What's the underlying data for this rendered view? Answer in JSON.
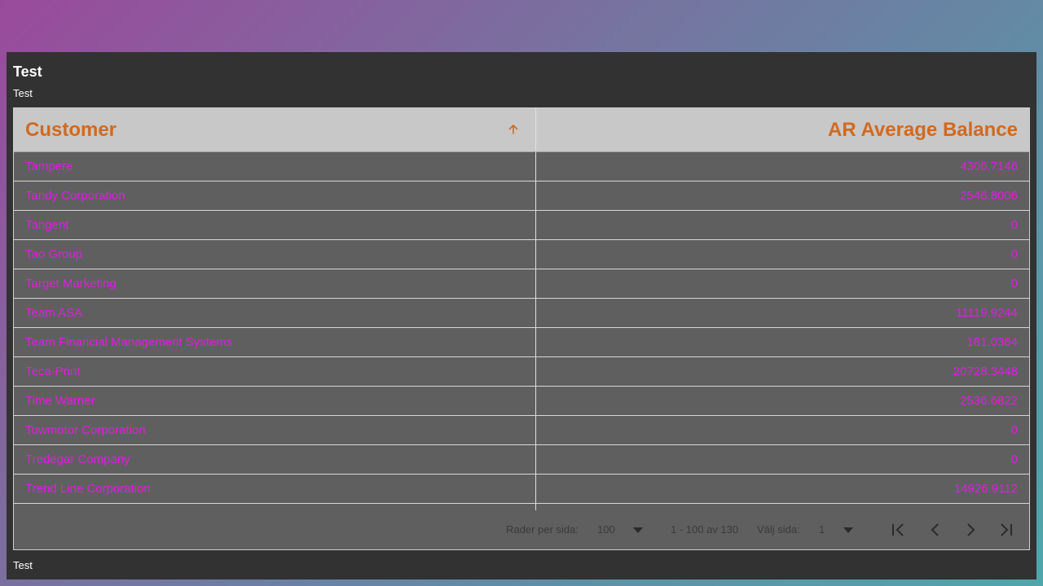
{
  "panel": {
    "title": "Test",
    "subtitle": "Test",
    "footer": "Test"
  },
  "table": {
    "columns": {
      "customer": "Customer",
      "balance": "AR Average Balance"
    },
    "sort": "ascending",
    "rows": [
      {
        "customer": "Tampere",
        "balance": "4306.7146"
      },
      {
        "customer": "Tandy Corporation",
        "balance": "2546.8006"
      },
      {
        "customer": "Tangent",
        "balance": "0"
      },
      {
        "customer": "Tao Group",
        "balance": "0"
      },
      {
        "customer": "Target Marketing",
        "balance": "0"
      },
      {
        "customer": "Team ASA",
        "balance": "11119.9244"
      },
      {
        "customer": "Team Financial Management Systems",
        "balance": "181.0364"
      },
      {
        "customer": "Teca-Print",
        "balance": "20728.3448"
      },
      {
        "customer": "Time Warner",
        "balance": "2536.6822"
      },
      {
        "customer": "Towmotor Corporation",
        "balance": "0"
      },
      {
        "customer": "Tredegar Company",
        "balance": "0"
      },
      {
        "customer": "Trend Line Corporation",
        "balance": "14926.9112"
      }
    ]
  },
  "pager": {
    "rows_per_page_label": "Rader per sida:",
    "rows_per_page_value": "100",
    "range": "1 - 100 av 130",
    "page_label": "Välj sida:",
    "page_value": "1"
  },
  "colors": {
    "header_text": "#d2691e",
    "cell_text": "#e01ee0",
    "panel_bg": "#323232",
    "table_bg": "#5f5f5f",
    "header_bg": "#c8c8c8"
  },
  "icons": {
    "sort": "arrow-up-icon",
    "dropdown": "caret-down-icon",
    "first": "first-page-icon",
    "prev": "chevron-left-icon",
    "next": "chevron-right-icon",
    "last": "last-page-icon"
  }
}
